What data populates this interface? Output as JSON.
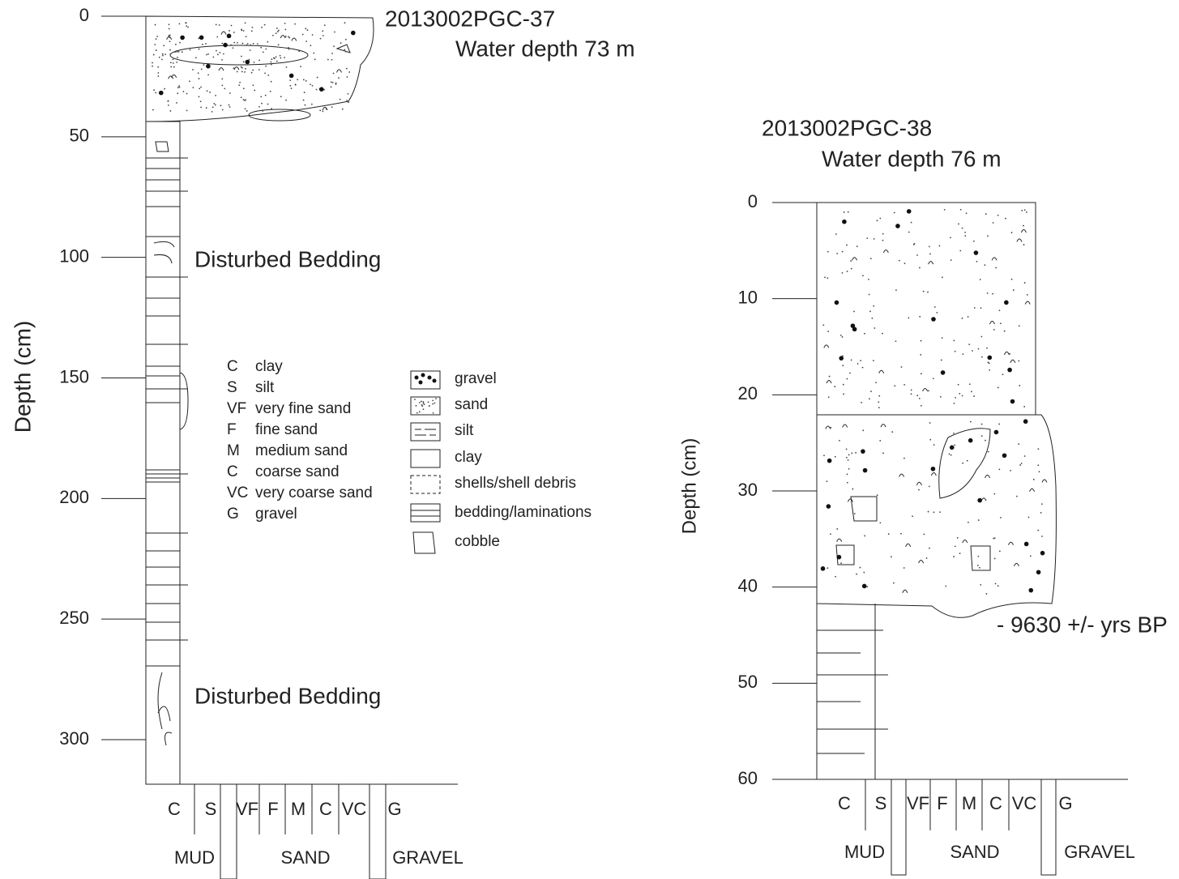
{
  "cores": [
    {
      "title": "2013002PGC-37",
      "water_depth": "Water depth 73 m",
      "axis_label": "Depth (cm)",
      "depth_ticks": [
        0,
        50,
        100,
        150,
        200,
        250,
        300
      ],
      "annotations": [
        "Disturbed Bedding",
        "Disturbed Bedding"
      ],
      "grain_scale": [
        "C",
        "S",
        "VF",
        "F",
        "M",
        "C",
        "VC",
        "G"
      ],
      "grain_groups": [
        "MUD",
        "SAND",
        "GRAVEL"
      ]
    },
    {
      "title": "2013002PGC-38",
      "water_depth": "Water depth 76 m",
      "axis_label": "Depth (cm)",
      "depth_ticks": [
        0,
        10,
        20,
        30,
        40,
        50,
        60
      ],
      "annotations": [
        "- 9630 +/- yrs BP"
      ],
      "grain_scale": [
        "C",
        "S",
        "VF",
        "F",
        "M",
        "C",
        "VC",
        "G"
      ],
      "grain_groups": [
        "MUD",
        "SAND",
        "GRAVEL"
      ]
    }
  ],
  "legend": {
    "grain_sizes": [
      {
        "code": "C",
        "label": "clay"
      },
      {
        "code": "S",
        "label": "silt"
      },
      {
        "code": "VF",
        "label": "very fine sand"
      },
      {
        "code": "F",
        "label": "fine sand"
      },
      {
        "code": "M",
        "label": "medium sand"
      },
      {
        "code": "C",
        "label": "coarse sand"
      },
      {
        "code": "VC",
        "label": "very coarse sand"
      },
      {
        "code": "G",
        "label": "gravel"
      }
    ],
    "symbols": [
      "gravel",
      "sand",
      "silt",
      "clay",
      "shells/shell debris",
      "bedding/laminations",
      "cobble"
    ]
  }
}
